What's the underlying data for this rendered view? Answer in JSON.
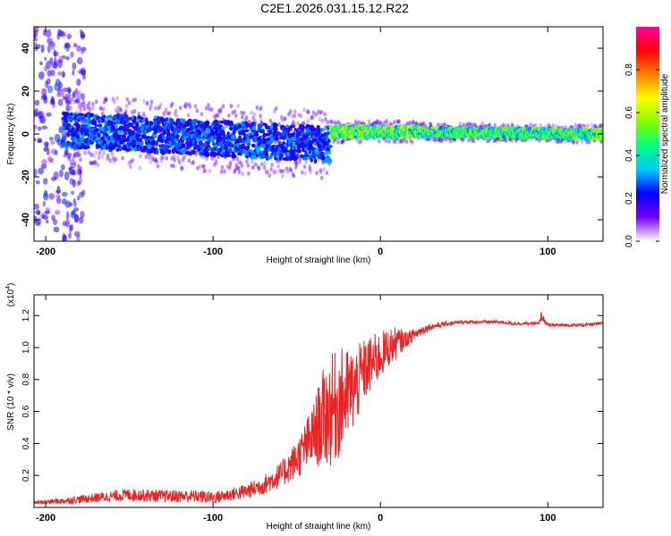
{
  "figure": {
    "title": "C2E1.2026.031.15.12.R22"
  },
  "chart_data": [
    {
      "type": "heatmap",
      "xlabel": "Height of straight line (km)",
      "ylabel": "Frequency (Hz)",
      "xlim": [
        -207,
        133
      ],
      "ylim": [
        -50,
        50
      ],
      "xticks": [
        -200,
        -100,
        0,
        100
      ],
      "yticks": [
        -40,
        -20,
        0,
        20,
        40
      ],
      "colorbar": {
        "label": "Normalized spectral amplitude",
        "range": [
          0,
          1
        ],
        "ticks": [
          0.0,
          0.2,
          0.4,
          0.6,
          0.8
        ],
        "tick_labels": [
          "0.0",
          "0.2",
          "0.4",
          "0.6",
          "0.8"
        ],
        "colormap": [
          "#ffffff",
          "#7a00ff",
          "#0000ff",
          "#00c8ff",
          "#00ff80",
          "#80ff00",
          "#ffff00",
          "#ff8000",
          "#ff0000",
          "#ff00a0"
        ]
      },
      "bands": [
        {
          "x": [
            -190,
            -30
          ],
          "center": 2,
          "center_end": -5,
          "halfwidth": 8,
          "level": 0.3,
          "peak": 0.5
        },
        {
          "x": [
            -30,
            20
          ],
          "center": 1,
          "center_end": 1,
          "halfwidth": 2.5,
          "level": 0.6,
          "peak": 0.9
        },
        {
          "x": [
            20,
            133
          ],
          "center": 1,
          "center_end": 0,
          "halfwidth": 2,
          "level": 0.55,
          "peak": 0.7
        }
      ]
    },
    {
      "type": "line",
      "xlabel": "Height of straight line (km)",
      "ylabel": "SNR (10 * v/v)",
      "yscale_label": "(x10",
      "yscale_exponent": "4",
      "xlim": [
        -207,
        133
      ],
      "ylim": [
        0,
        1.33
      ],
      "xticks": [
        -200,
        -100,
        0,
        100
      ],
      "yticks": [
        0.2,
        0.4,
        0.6,
        0.8,
        1.0,
        1.2
      ],
      "ytick_labels": [
        "0.2",
        "0.4",
        "0.6",
        "0.8",
        "1.0",
        "1.2"
      ],
      "color": "#ee2222",
      "series": [
        {
          "x": [
            -207,
            -190,
            -170,
            -150,
            -130,
            -110,
            -100,
            -90,
            -80,
            -70,
            -60,
            -50,
            -40,
            -35,
            -30,
            -25,
            -20,
            -15,
            -10,
            -5,
            0,
            5,
            10,
            15,
            20,
            25,
            30,
            40,
            50,
            60,
            70,
            80,
            90,
            95,
            96,
            100,
            110,
            120,
            133
          ],
          "values": [
            0.03,
            0.04,
            0.06,
            0.08,
            0.07,
            0.07,
            0.06,
            0.08,
            0.1,
            0.14,
            0.2,
            0.3,
            0.45,
            0.55,
            0.6,
            0.65,
            0.7,
            0.75,
            0.85,
            0.9,
            0.95,
            1.0,
            1.03,
            1.05,
            1.08,
            1.11,
            1.13,
            1.15,
            1.16,
            1.16,
            1.16,
            1.15,
            1.15,
            1.15,
            1.2,
            1.14,
            1.14,
            1.14,
            1.15
          ],
          "noise": [
            0.01,
            0.02,
            0.03,
            0.04,
            0.04,
            0.04,
            0.04,
            0.04,
            0.05,
            0.06,
            0.08,
            0.12,
            0.2,
            0.3,
            0.35,
            0.35,
            0.3,
            0.25,
            0.2,
            0.18,
            0.15,
            0.12,
            0.1,
            0.05,
            0.04,
            0.03,
            0.02,
            0.015,
            0.01,
            0.01,
            0.01,
            0.01,
            0.01,
            0.01,
            0.03,
            0.01,
            0.01,
            0.01,
            0.01
          ]
        }
      ]
    }
  ]
}
